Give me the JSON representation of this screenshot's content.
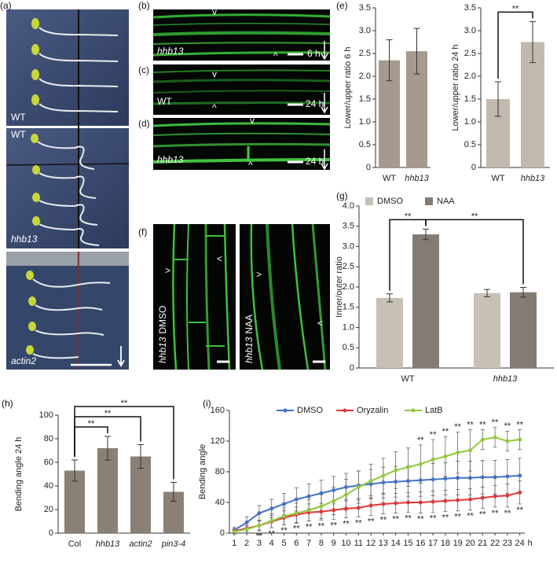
{
  "panel_labels": [
    "(a)",
    "(b)",
    "(c)",
    "(d)",
    "(e)",
    "(f)",
    "(g)",
    "(h)",
    "(i)"
  ],
  "photos": {
    "a": {
      "labels": [
        "WT",
        "WT",
        "hhb13",
        "actin2"
      ]
    },
    "b": {
      "caption": "hhb13",
      "time": "6 h",
      "marks": [
        "v",
        "^"
      ]
    },
    "c": {
      "caption": "WT",
      "time": "24 h",
      "marks": [
        "v",
        "^"
      ]
    },
    "d": {
      "caption": "hhb13",
      "time": "24 h",
      "marks": [
        "v",
        "^"
      ]
    },
    "f": {
      "left": [
        "hhb13",
        "DMSO"
      ],
      "right": [
        "hhb13",
        "NAA"
      ],
      "marks": [
        ">",
        "<",
        ">",
        "<"
      ]
    }
  },
  "chart_data": [
    {
      "type": "bar",
      "ylabel": "Lower/upper ratio 6 h",
      "categories": [
        "WT",
        "hhb13"
      ],
      "category_style": [
        "normal",
        "italic"
      ],
      "values": [
        2.35,
        2.55
      ],
      "errors": [
        0.45,
        0.5
      ],
      "color": "#a69a8e",
      "ylim": [
        0,
        3.5
      ],
      "yticks": [
        0,
        0.5,
        {
          "value": 1,
          "label": "1.0"
        },
        1.5,
        {
          "value": 2,
          "label": "2.0"
        },
        2.5,
        {
          "value": 3,
          "label": "3.0"
        },
        3.5
      ]
    },
    {
      "type": "bar",
      "ylabel": "Lower/upper ratio 24 h",
      "categories": [
        "WT",
        "hhb13"
      ],
      "category_style": [
        "normal",
        "italic"
      ],
      "values": [
        1.5,
        2.75
      ],
      "errors": [
        0.38,
        0.45
      ],
      "color": "#c2b9ae",
      "ylim": [
        0,
        3.5
      ],
      "yticks": [
        0,
        0.5,
        {
          "value": 1,
          "label": "1.0"
        },
        1.5,
        {
          "value": 2,
          "label": "2.0"
        },
        2.5,
        {
          "value": 3,
          "label": "3.0"
        },
        3.5
      ],
      "comparisons": [
        {
          "from": 0,
          "to": 1,
          "label": "**"
        }
      ]
    },
    {
      "type": "bar",
      "ylabel": "Inner/outer ratio",
      "categories": [
        "WT",
        "hhb13"
      ],
      "category_style": [
        "normal",
        "italic"
      ],
      "series": [
        {
          "name": "DMSO",
          "color": "#c7c0b5",
          "values": [
            1.73,
            1.85
          ],
          "errors": [
            0.1,
            0.09
          ]
        },
        {
          "name": "NAA",
          "color": "#847c74",
          "values": [
            3.3,
            1.87
          ],
          "errors": [
            0.13,
            0.12
          ]
        }
      ],
      "ylim": [
        0,
        4
      ],
      "yticks": [
        0,
        0.5,
        {
          "value": 1,
          "label": "1.0"
        },
        1.5,
        {
          "value": 2,
          "label": "2.0"
        },
        2.5,
        {
          "value": 3,
          "label": "3.0"
        },
        3.5,
        {
          "value": 4,
          "label": "4.0"
        }
      ],
      "comparisons": [
        {
          "from": [
            0,
            0
          ],
          "to": [
            0,
            1
          ],
          "label": "**"
        },
        {
          "from": [
            0,
            1
          ],
          "to": [
            1,
            1
          ],
          "label": "**"
        }
      ]
    },
    {
      "type": "bar",
      "ylabel": "Bending angle 24 h",
      "categories": [
        "Col",
        "hhb13",
        "actin2",
        "pin3-4"
      ],
      "category_style": [
        "normal",
        "italic",
        "italic",
        "italic"
      ],
      "values": [
        53,
        72,
        65,
        35
      ],
      "errors": [
        9,
        10,
        10,
        8
      ],
      "color": "#8b8075",
      "ylim": [
        0,
        100
      ],
      "yticks": [
        0,
        20,
        40,
        60,
        80,
        100
      ],
      "comparisons": [
        {
          "from": 0,
          "to": 1,
          "label": "**"
        },
        {
          "from": 0,
          "to": 2,
          "label": "**"
        },
        {
          "from": 0,
          "to": 3,
          "label": "**"
        }
      ]
    },
    {
      "type": "line",
      "ylabel": "Bending angle",
      "x": [
        1,
        2,
        3,
        4,
        5,
        6,
        7,
        8,
        9,
        10,
        11,
        12,
        13,
        14,
        15,
        16,
        17,
        18,
        19,
        20,
        21,
        22,
        23,
        24
      ],
      "xticks": [
        1,
        2,
        3,
        4,
        5,
        6,
        7,
        8,
        9,
        10,
        11,
        12,
        13,
        14,
        15,
        16,
        17,
        18,
        19,
        20,
        21,
        22,
        23,
        24
      ],
      "x_unit": "h",
      "xlim": [
        0.6,
        24.4
      ],
      "ylim": [
        0,
        160
      ],
      "yticks": [
        0,
        40,
        80,
        120,
        160
      ],
      "series": [
        {
          "name": "DMSO",
          "color": "#4472c4",
          "values": [
            4,
            14,
            26,
            32,
            38,
            44,
            48,
            52,
            56,
            60,
            62,
            64,
            66,
            67,
            68,
            69,
            70,
            71,
            72,
            72,
            73,
            73,
            74,
            75
          ],
          "errors": [
            4,
            7,
            10,
            12,
            14,
            15,
            16,
            17,
            18,
            18,
            19,
            19,
            20,
            20,
            20,
            21,
            21,
            21,
            22,
            22,
            22,
            22,
            22,
            23
          ]
        },
        {
          "name": "Oryzalin",
          "color": "#e0383a",
          "values": [
            3,
            6,
            10,
            15,
            20,
            24,
            27,
            28,
            30,
            32,
            33,
            36,
            38,
            39,
            40,
            40,
            41,
            42,
            43,
            44,
            46,
            48,
            49,
            53
          ],
          "errors": [
            3,
            4,
            6,
            8,
            9,
            10,
            11,
            11,
            12,
            12,
            12,
            13,
            13,
            13,
            13,
            14,
            14,
            14,
            14,
            14,
            14,
            14,
            15,
            15
          ]
        },
        {
          "name": "LatB",
          "color": "#92c83e",
          "values": [
            2,
            5,
            10,
            16,
            22,
            26,
            30,
            35,
            42,
            50,
            60,
            68,
            75,
            82,
            86,
            90,
            96,
            100,
            105,
            108,
            122,
            125,
            120,
            122
          ],
          "errors": [
            3,
            5,
            7,
            9,
            11,
            13,
            14,
            16,
            18,
            20,
            21,
            22,
            23,
            24,
            25,
            25,
            26,
            26,
            27,
            27,
            13,
            13,
            13,
            13
          ]
        }
      ],
      "significance": [
        {
          "label": "**",
          "series": 2,
          "position": "above",
          "x": [
            16,
            17,
            18,
            19,
            20,
            21,
            22,
            23,
            24
          ]
        },
        {
          "label": "**",
          "series": 1,
          "position": "below",
          "x": [
            3,
            4,
            5,
            6,
            7,
            8,
            9,
            10,
            11,
            12,
            13,
            14,
            15,
            16,
            17,
            18,
            19,
            20,
            21,
            22,
            23,
            24
          ]
        }
      ]
    }
  ]
}
